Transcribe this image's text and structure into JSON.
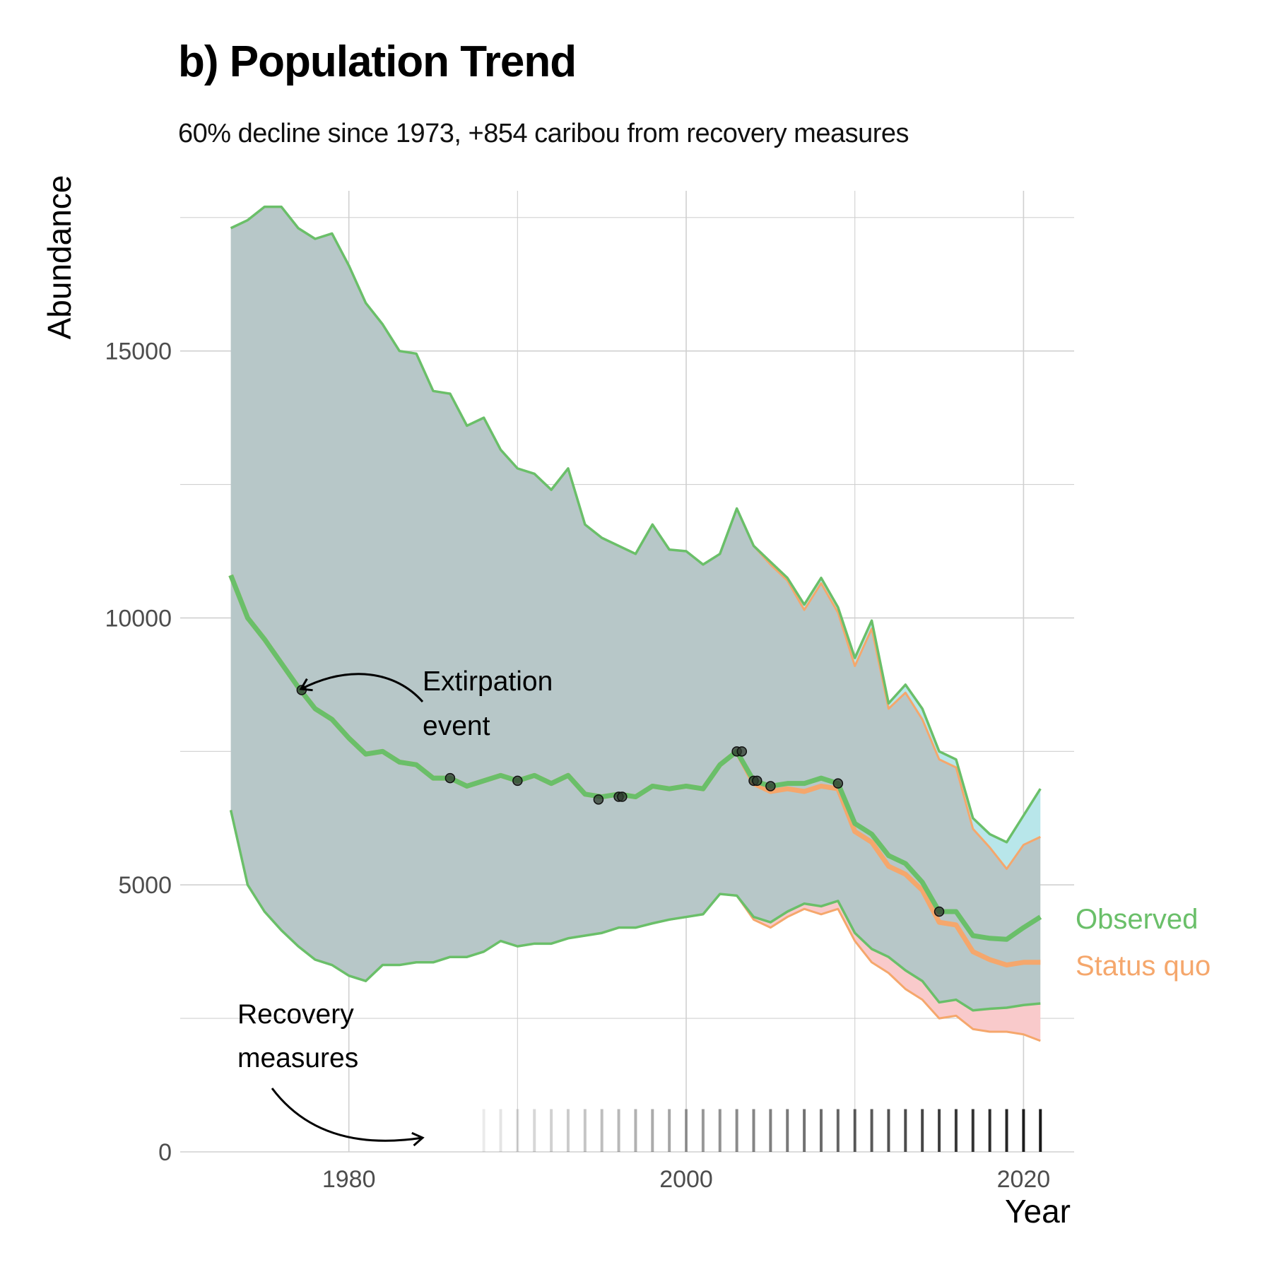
{
  "colors": {
    "observed": "#6abf69",
    "status_quo": "#f5a76c",
    "ribbon_shared": "#b7c7c8",
    "ribbon_observed_only": "#b8e6ea",
    "ribbon_status_quo_only": "#f9cacb",
    "grid": "#d0d0d0",
    "points": "#2f3b2f"
  },
  "chart_data": {
    "type": "line",
    "title": "b) Population Trend",
    "subtitle": "60% decline since 1973, +854 caribou from recovery measures",
    "xlabel": "Year",
    "ylabel": "Abundance",
    "xlim": [
      1970,
      2023
    ],
    "ylim": [
      0,
      18000
    ],
    "x_ticks": [
      1980,
      2000,
      2020
    ],
    "y_ticks": [
      0,
      5000,
      10000,
      15000
    ],
    "grid": true,
    "legend_placement": "right, at line ends",
    "x": [
      1973,
      1974,
      1975,
      1976,
      1977,
      1978,
      1979,
      1980,
      1981,
      1982,
      1983,
      1984,
      1985,
      1986,
      1987,
      1988,
      1989,
      1990,
      1991,
      1992,
      1993,
      1994,
      1995,
      1996,
      1997,
      1998,
      1999,
      2000,
      2001,
      2002,
      2003,
      2004,
      2005,
      2006,
      2007,
      2008,
      2009,
      2010,
      2011,
      2012,
      2013,
      2014,
      2015,
      2016,
      2017,
      2018,
      2019,
      2020,
      2021
    ],
    "series": [
      {
        "name": "Observed",
        "color_key": "observed",
        "values": [
          10800,
          10000,
          9600,
          9150,
          8700,
          8300,
          8100,
          7750,
          7450,
          7500,
          7300,
          7250,
          7000,
          7000,
          6850,
          6950,
          7050,
          6950,
          7050,
          6900,
          7050,
          6700,
          6650,
          6700,
          6650,
          6850,
          6800,
          6850,
          6800,
          7250,
          7500,
          6950,
          6850,
          6900,
          6900,
          7000,
          6900,
          6150,
          5950,
          5550,
          5400,
          5050,
          4500,
          4500,
          4050,
          4000,
          3980,
          4200,
          4400
        ],
        "lower": [
          6400,
          5000,
          4500,
          4150,
          3850,
          3600,
          3500,
          3300,
          3200,
          3500,
          3500,
          3550,
          3550,
          3650,
          3650,
          3750,
          3950,
          3850,
          3900,
          3900,
          4000,
          4050,
          4100,
          4200,
          4200,
          4280,
          4350,
          4400,
          4450,
          4830,
          4800,
          4400,
          4300,
          4500,
          4650,
          4600,
          4700,
          4100,
          3800,
          3650,
          3400,
          3200,
          2800,
          2850,
          2650,
          2680,
          2700,
          2750,
          2780
        ],
        "upper": [
          17300,
          17450,
          17700,
          17700,
          17300,
          17100,
          17200,
          16600,
          15900,
          15500,
          15000,
          14950,
          14250,
          14200,
          13600,
          13750,
          13150,
          12800,
          12700,
          12400,
          12800,
          11750,
          11500,
          11350,
          11200,
          11750,
          11280,
          11250,
          11000,
          11200,
          12050,
          11350,
          11050,
          10750,
          10250,
          10750,
          10200,
          9250,
          9950,
          8400,
          8750,
          8300,
          7500,
          7350,
          6250,
          5950,
          5800,
          6300,
          6800
        ]
      },
      {
        "name": "Status quo",
        "color_key": "status_quo",
        "values": [
          10800,
          10000,
          9600,
          9150,
          8700,
          8300,
          8100,
          7750,
          7450,
          7500,
          7300,
          7250,
          7000,
          7000,
          6850,
          6950,
          7050,
          6950,
          7050,
          6900,
          7050,
          6700,
          6650,
          6700,
          6650,
          6850,
          6800,
          6850,
          6800,
          7250,
          7500,
          6900,
          6750,
          6800,
          6750,
          6850,
          6800,
          6000,
          5800,
          5350,
          5200,
          4900,
          4300,
          4250,
          3750,
          3600,
          3500,
          3550,
          3550
        ],
        "lower": [
          6400,
          5000,
          4500,
          4150,
          3850,
          3600,
          3500,
          3300,
          3200,
          3500,
          3500,
          3550,
          3550,
          3650,
          3650,
          3750,
          3950,
          3850,
          3900,
          3900,
          4000,
          4050,
          4100,
          4200,
          4200,
          4280,
          4350,
          4400,
          4450,
          4830,
          4800,
          4350,
          4200,
          4400,
          4550,
          4450,
          4550,
          3950,
          3550,
          3350,
          3050,
          2850,
          2500,
          2550,
          2300,
          2250,
          2250,
          2200,
          2080
        ],
        "upper": [
          17300,
          17450,
          17700,
          17700,
          17300,
          17100,
          17200,
          16600,
          15900,
          15500,
          15000,
          14950,
          14250,
          14200,
          13600,
          13750,
          13150,
          12800,
          12700,
          12400,
          12800,
          11750,
          11500,
          11350,
          11200,
          11750,
          11280,
          11250,
          11000,
          11200,
          12050,
          11350,
          11000,
          10700,
          10150,
          10650,
          10100,
          9100,
          9800,
          8300,
          8600,
          8100,
          7350,
          7200,
          6050,
          5700,
          5300,
          5750,
          5900
        ]
      }
    ],
    "observed_points": [
      {
        "x": 1977.2,
        "y": 8650
      },
      {
        "x": 1986,
        "y": 7000
      },
      {
        "x": 1990,
        "y": 6950
      },
      {
        "x": 1994.8,
        "y": 6600
      },
      {
        "x": 1996,
        "y": 6650
      },
      {
        "x": 1996.2,
        "y": 6650
      },
      {
        "x": 2003,
        "y": 7500
      },
      {
        "x": 2003.3,
        "y": 7500
      },
      {
        "x": 2004,
        "y": 6950
      },
      {
        "x": 2004.2,
        "y": 6950
      },
      {
        "x": 2005,
        "y": 6850
      },
      {
        "x": 2009,
        "y": 6900
      },
      {
        "x": 2015,
        "y": 4500
      }
    ],
    "recovery_measure_years": [
      1988,
      1989,
      1990,
      1991,
      1992,
      1993,
      1994,
      1995,
      1996,
      1997,
      1998,
      1999,
      2000,
      2001,
      2002,
      2003,
      2004,
      2005,
      2006,
      2007,
      2008,
      2009,
      2010,
      2011,
      2012,
      2013,
      2014,
      2015,
      2016,
      2017,
      2018,
      2019,
      2020,
      2021
    ],
    "recovery_tick_height": 800,
    "annotations": {
      "extirpation_line1": "Extirpation",
      "extirpation_line2": "event",
      "recovery_line1": "Recovery",
      "recovery_line2": "measures"
    },
    "legend_labels": {
      "observed": "Observed",
      "status_quo": "Status quo"
    }
  }
}
